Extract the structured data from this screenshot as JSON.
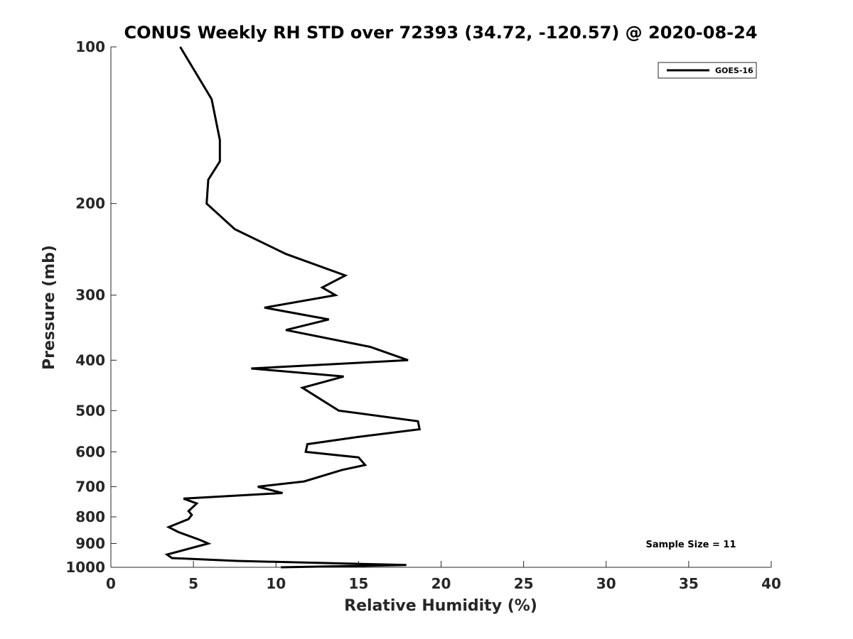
{
  "chart_data": {
    "type": "line",
    "title": "CONUS Weekly RH STD over 72393 (34.72, -120.57) @ 2020-08-24",
    "xlabel": "Relative Humidity (%)",
    "ylabel": "Pressure (mb)",
    "xlim": [
      0,
      40
    ],
    "ylim": [
      100,
      1000
    ],
    "yscale": "log",
    "y_reversed": true,
    "xticks": [
      0,
      5,
      10,
      15,
      20,
      25,
      30,
      35,
      40
    ],
    "yticks": [
      100,
      200,
      300,
      400,
      500,
      600,
      700,
      800,
      900,
      1000
    ],
    "legend": {
      "position": "top-right",
      "entries": [
        "GOES-16"
      ]
    },
    "annotations": [
      {
        "text": "Sample Size = 11",
        "position": "bottom-right"
      }
    ],
    "series": [
      {
        "name": "GOES-16",
        "color": "#000000",
        "points": [
          [
            4.2,
            100
          ],
          [
            6.1,
            126
          ],
          [
            6.6,
            151
          ],
          [
            6.6,
            166
          ],
          [
            5.9,
            180
          ],
          [
            5.8,
            200
          ],
          [
            7.5,
            224
          ],
          [
            10.6,
            250
          ],
          [
            14.2,
            275
          ],
          [
            12.8,
            290
          ],
          [
            13.6,
            300
          ],
          [
            9.3,
            317
          ],
          [
            13.2,
            334
          ],
          [
            10.6,
            350
          ],
          [
            15.7,
            377
          ],
          [
            18.0,
            400
          ],
          [
            8.5,
            415
          ],
          [
            14.1,
            430
          ],
          [
            11.6,
            452
          ],
          [
            13.8,
            500
          ],
          [
            18.6,
            524
          ],
          [
            18.7,
            543
          ],
          [
            14.9,
            562
          ],
          [
            11.9,
            580
          ],
          [
            11.8,
            600
          ],
          [
            15.0,
            615
          ],
          [
            15.4,
            636
          ],
          [
            14.0,
            650
          ],
          [
            11.7,
            684
          ],
          [
            8.9,
            700
          ],
          [
            10.4,
            720
          ],
          [
            4.4,
            738
          ],
          [
            5.2,
            754
          ],
          [
            4.7,
            780
          ],
          [
            4.9,
            793
          ],
          [
            4.7,
            808
          ],
          [
            3.5,
            837
          ],
          [
            4.1,
            856
          ],
          [
            5.4,
            886
          ],
          [
            5.9,
            900
          ],
          [
            3.4,
            945
          ],
          [
            3.7,
            960
          ],
          [
            7.6,
            972
          ],
          [
            17.9,
            990
          ],
          [
            10.3,
            1000
          ]
        ]
      }
    ]
  },
  "sample_size_text": "Sample Size = 11"
}
